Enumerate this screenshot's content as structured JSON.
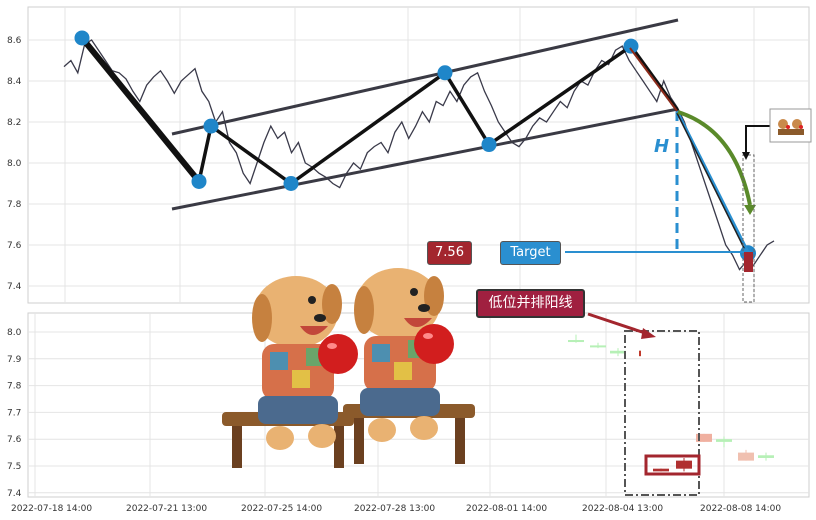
{
  "chart_data": [
    {
      "type": "line",
      "panel": "upper",
      "ylim": [
        7.35,
        8.75
      ],
      "yticks": [
        7.4,
        7.6,
        7.8,
        8.0,
        8.2,
        8.4,
        8.6
      ],
      "price_series": [
        8.47,
        8.5,
        8.44,
        8.58,
        8.6,
        8.55,
        8.5,
        8.45,
        8.44,
        8.41,
        8.35,
        8.3,
        8.38,
        8.42,
        8.45,
        8.4,
        8.34,
        8.4,
        8.43,
        8.46,
        8.35,
        8.3,
        8.2,
        8.25,
        8.1,
        8.05,
        7.95,
        7.9,
        8.0,
        8.1,
        8.18,
        8.12,
        8.15,
        8.05,
        8.1,
        8.0,
        7.98,
        7.95,
        7.93,
        7.9,
        7.88,
        7.95,
        8.0,
        7.97,
        8.05,
        8.08,
        8.1,
        8.05,
        8.15,
        8.2,
        8.12,
        8.18,
        8.25,
        8.2,
        8.3,
        8.28,
        8.35,
        8.3,
        8.38,
        8.42,
        8.44,
        8.35,
        8.28,
        8.2,
        8.15,
        8.1,
        8.08,
        8.12,
        8.18,
        8.22,
        8.2,
        8.25,
        8.3,
        8.27,
        8.35,
        8.4,
        8.38,
        8.45,
        8.5,
        8.48,
        8.55,
        8.57,
        8.5,
        8.45,
        8.4,
        8.35,
        8.3,
        8.4,
        8.32,
        8.27,
        8.2,
        8.1,
        8.0,
        7.9,
        7.8,
        7.7,
        7.6,
        7.55,
        7.48,
        7.52,
        7.5,
        7.55,
        7.6,
        7.62
      ],
      "zigzag_pivots": [
        {
          "x": "2022-07-18",
          "y": 8.61
        },
        {
          "x": "2022-07-21",
          "y": 7.91
        },
        {
          "x": "2022-07-21 14:00",
          "y": 8.18
        },
        {
          "x": "2022-07-25",
          "y": 7.9
        },
        {
          "x": "2022-07-29",
          "y": 8.44
        },
        {
          "x": "2022-08-01",
          "y": 8.09
        },
        {
          "x": "2022-08-05",
          "y": 8.57
        },
        {
          "x": "2022-08-06",
          "y": 8.26
        },
        {
          "x": "2022-08-08",
          "y": 7.56
        }
      ],
      "channel_upper": [
        [
          8.14,
          8.7
        ]
      ],
      "channel_lower": [
        [
          7.78,
          8.26
        ]
      ],
      "measure_label": "H",
      "target_label": "Target",
      "target_value_label": "7.56"
    },
    {
      "type": "candlestick",
      "panel": "lower",
      "ylim": [
        7.4,
        8.05
      ],
      "yticks": [
        7.4,
        7.5,
        7.6,
        7.7,
        7.8,
        7.9,
        8.0
      ],
      "x_tick_labels": [
        "2022-07-18 14:00",
        "2022-07-21 13:00",
        "2022-07-25 14:00",
        "2022-07-28 13:00",
        "2022-08-01 14:00",
        "2022-08-04 13:00",
        "2022-08-08 14:00"
      ],
      "candles": [
        {
          "o": 7.97,
          "c": 7.97,
          "h": 7.99,
          "l": 7.96,
          "color": "#b6f0b6"
        },
        {
          "o": 7.95,
          "c": 7.95,
          "h": 7.96,
          "l": 7.94,
          "color": "#b6f0b6"
        },
        {
          "o": 7.93,
          "c": 7.92,
          "h": 7.94,
          "l": 7.91,
          "color": "#b6f0b6"
        },
        {
          "o": 7.93,
          "c": 7.92,
          "h": 7.93,
          "l": 7.92,
          "color": "#b6f0b6"
        },
        {
          "o": 7.93,
          "c": 7.91,
          "h": 7.93,
          "l": 7.91,
          "color": "#c0392b"
        },
        {
          "o": 7.49,
          "c": 7.48,
          "h": 7.49,
          "l": 7.48,
          "color": "#b03030"
        },
        {
          "o": 7.52,
          "c": 7.49,
          "h": 7.53,
          "l": 7.48,
          "color": "#b03030"
        },
        {
          "o": 7.59,
          "c": 7.62,
          "h": 7.62,
          "l": 7.59,
          "color": "#f0b0a0"
        },
        {
          "o": 7.59,
          "c": 7.6,
          "h": 7.61,
          "l": 7.57,
          "color": "#b6f0b6"
        },
        {
          "o": 7.55,
          "c": 7.52,
          "h": 7.56,
          "l": 7.52,
          "color": "#f0c0b0"
        },
        {
          "o": 7.54,
          "c": 7.53,
          "h": 7.55,
          "l": 7.52,
          "color": "#b6f0b6"
        }
      ],
      "annotation": "低位并排阳线"
    }
  ],
  "colors": {
    "pivot": "#1f86c9",
    "channel": "#3a3a44",
    "price": "#3a3a4a",
    "value_box": "#a3262e",
    "target_box": "#2a8fd0",
    "arrow_green": "#5a8a2a",
    "annotation_box": "#a02040"
  }
}
